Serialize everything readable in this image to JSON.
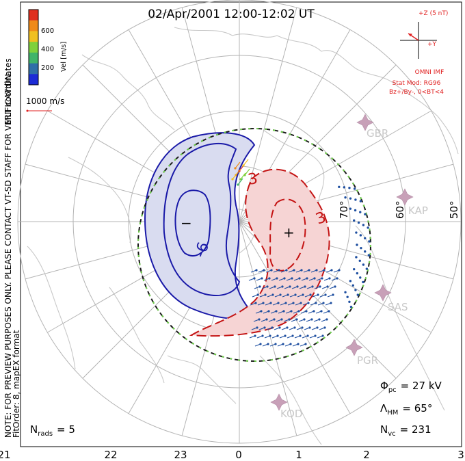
{
  "title": "02/Apr/2001 12:00-12:02 UT",
  "side_note": "NOTE: FOR PREVIEW PURPOSES ONLY. PLEASE CONTACT VT-SD STAFF FOR VERIFICATION.",
  "coords_label": "MLT coordinates",
  "fit_label": "FitOrder: 8,  mapEX format",
  "colorbar": {
    "label": "Vel [m/s]",
    "ticks": [
      "600",
      "400",
      "200"
    ],
    "colors": [
      "#1c2bd6",
      "#2f6fa8",
      "#40b46a",
      "#7fd13b",
      "#f0c020",
      "#f08a18",
      "#e03020"
    ]
  },
  "velocity_scale": "1000 m/s",
  "imf": {
    "plus_z_label": "+Z (5 nT)",
    "plus_y_label": "+Y",
    "source": "OMNI IMF",
    "model_line1": "Stat Mod: RG96",
    "model_line2": "Bz+/By-, 0<BT<4"
  },
  "stats": {
    "phi_symbol": "Φ",
    "phi_sub": "pc",
    "phi_value": "= 27 kV",
    "lambda_symbol": "Λ",
    "lambda_sub": "HM",
    "lambda_value": "= 65°",
    "nvc_symbol": "N",
    "nvc_sub": "vc",
    "nvc_value": "= 231",
    "nrads_symbol": "N",
    "nrads_sub": "rads",
    "nrads_value": "= 5"
  },
  "latitude_labels": [
    "70°",
    "60°",
    "50°"
  ],
  "stations": [
    "GBR",
    "KAP",
    "SAS",
    "PGR",
    "KOD"
  ],
  "contour_labels": [
    "3",
    "-6",
    "3"
  ],
  "chart_data": {
    "type": "map",
    "mlt_ticks": [
      "21",
      "22",
      "23",
      "0",
      "1",
      "2",
      "3"
    ],
    "latitude_circles_deg": [
      80,
      70,
      60,
      50
    ],
    "min_potential_marker": "−",
    "max_potential_marker": "+",
    "contour_levels_kV": [
      -9,
      -6,
      -3,
      3,
      6
    ],
    "heppner_maynard_boundary_lat_deg": 65,
    "cross_polar_cap_potential_kV": 27,
    "vectors": 231,
    "radars": 5,
    "colors": {
      "negative_fill": "#d9dcf0",
      "negative_line": "#1a1aa8",
      "positive_fill": "#f6d4d4",
      "positive_line": "#c41414",
      "grid": "#b4b4b4",
      "land": "#c8c8c8",
      "boundary": "#1a1a1a",
      "boundary_dash": "#6fd14a",
      "vectors": "#1e4fa0",
      "imf": "#e02020"
    }
  }
}
